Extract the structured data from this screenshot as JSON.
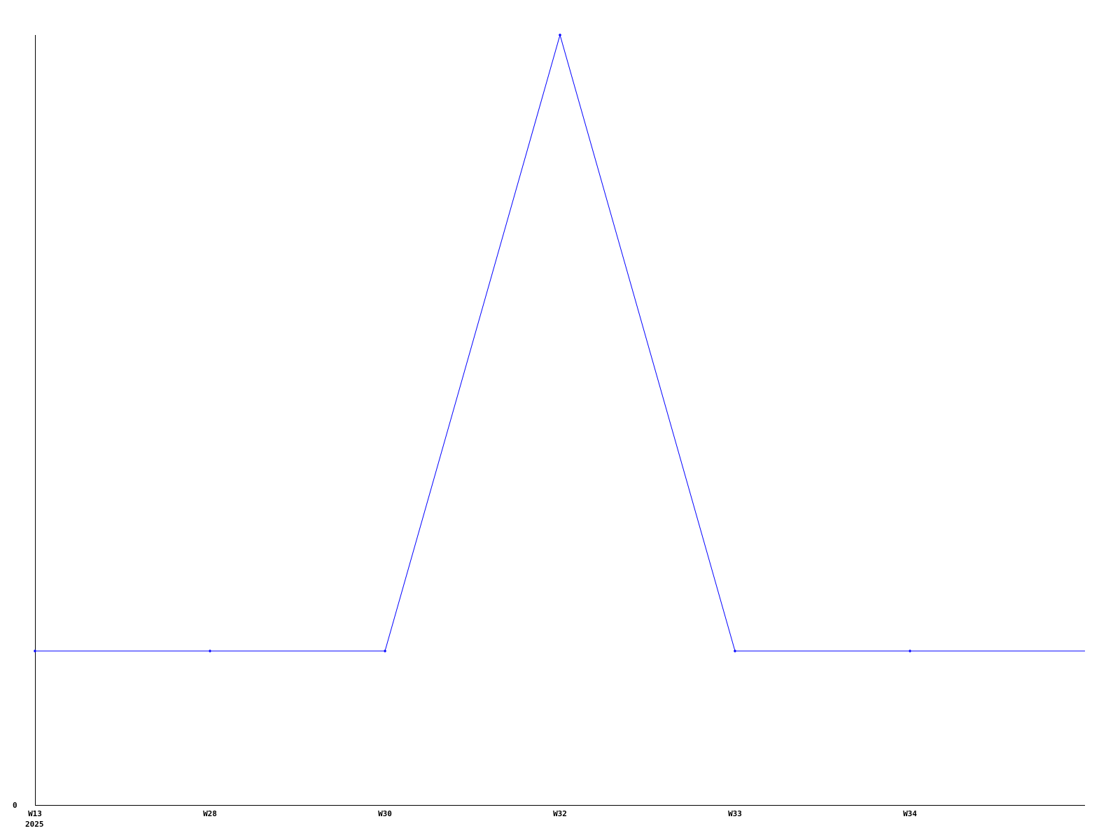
{
  "chart_data": {
    "type": "line",
    "title": "",
    "xlabel": "",
    "ylabel": "",
    "categories": [
      "W13",
      "W28",
      "W30",
      "W32",
      "W33",
      "W34"
    ],
    "year_label": "2025",
    "series": [
      {
        "values": [
          1,
          1,
          1,
          5,
          1,
          1
        ],
        "color": "#0000ff"
      }
    ],
    "trailing_value": 1,
    "ylim": [
      0,
      5
    ],
    "y_tick_labels": [
      "0"
    ],
    "grid": false,
    "legend": "none",
    "axis_color": "#000000"
  }
}
